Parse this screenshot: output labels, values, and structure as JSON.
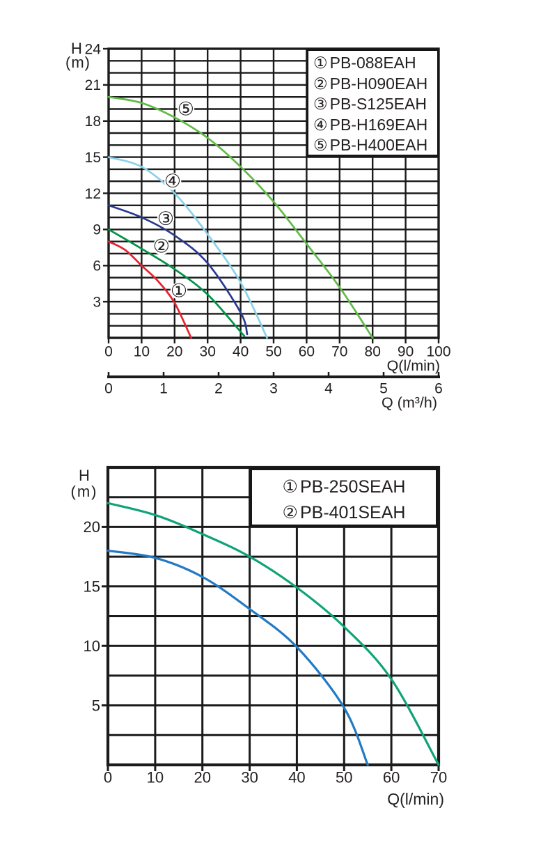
{
  "page": {
    "background": "#ffffff",
    "text_color": "#231f20",
    "grid_color": "#1b1b1b"
  },
  "chart_data": [
    {
      "type": "line",
      "title": "",
      "ylabel": "H (m)",
      "ylabel_line1": "H",
      "ylabel_line2": "(m)",
      "xlabel": "Q(l/min)",
      "x2label": "Q (m³/h)",
      "xlim": [
        0,
        100
      ],
      "ylim": [
        0,
        24
      ],
      "x2lim": [
        0,
        6
      ],
      "x_ticks": [
        0,
        10,
        20,
        30,
        40,
        50,
        60,
        70,
        80,
        90,
        100
      ],
      "y_ticks_labeled": [
        3,
        6,
        9,
        12,
        15,
        18,
        21,
        24
      ],
      "y_grid_step": 1,
      "x_grid_step": 10,
      "x2_ticks": [
        0,
        1,
        2,
        3,
        4,
        5,
        6
      ],
      "grid": true,
      "legend_position": "top-right",
      "legend_items": [
        {
          "marker": "①",
          "label": "PB-088EAH"
        },
        {
          "marker": "②",
          "label": "PB-H090EAH"
        },
        {
          "marker": "③",
          "label": "PB-S125EAH"
        },
        {
          "marker": "④",
          "label": "PB-H169EAH"
        },
        {
          "marker": "⑤",
          "label": "PB-H400EAH"
        }
      ],
      "series": [
        {
          "marker": "①",
          "name": "PB-088EAH",
          "color": "#e4232e",
          "points": [
            [
              0,
              8
            ],
            [
              5,
              7.3
            ],
            [
              10,
              6
            ],
            [
              15,
              4.7
            ],
            [
              20,
              2.9
            ],
            [
              25,
              0
            ]
          ]
        },
        {
          "marker": "②",
          "name": "PB-H090EAH",
          "color": "#009245",
          "points": [
            [
              0,
              9
            ],
            [
              10,
              7.4
            ],
            [
              20,
              5.7
            ],
            [
              30,
              3.6
            ],
            [
              40,
              0.5
            ],
            [
              41,
              0.2
            ]
          ]
        },
        {
          "marker": "③",
          "name": "PB-S125EAH",
          "color": "#2b3990",
          "points": [
            [
              0,
              11
            ],
            [
              10,
              10
            ],
            [
              20,
              8.5
            ],
            [
              30,
              6.2
            ],
            [
              40,
              2.1
            ],
            [
              42,
              0.3
            ]
          ]
        },
        {
          "marker": "④",
          "name": "PB-H169EAH",
          "color": "#8ad2e9",
          "points": [
            [
              0,
              15
            ],
            [
              10,
              14.2
            ],
            [
              20,
              12
            ],
            [
              30,
              8.6
            ],
            [
              40,
              4.6
            ],
            [
              48,
              0
            ]
          ]
        },
        {
          "marker": "⑤",
          "name": "PB-H400EAH",
          "color": "#5fbb46",
          "points": [
            [
              0,
              20
            ],
            [
              10,
              19.5
            ],
            [
              20,
              18.3
            ],
            [
              30,
              16.6
            ],
            [
              40,
              14.2
            ],
            [
              50,
              11.3
            ],
            [
              60,
              7.8
            ],
            [
              70,
              4.2
            ],
            [
              80,
              0
            ]
          ]
        }
      ],
      "curve_labels": [
        {
          "marker": "①",
          "x": 21.3,
          "y": 3.9
        },
        {
          "marker": "②",
          "x": 16.0,
          "y": 7.6
        },
        {
          "marker": "③",
          "x": 17.3,
          "y": 9.9
        },
        {
          "marker": "④",
          "x": 19.4,
          "y": 13.0
        },
        {
          "marker": "⑤",
          "x": 23.4,
          "y": 19.0
        }
      ]
    },
    {
      "type": "line",
      "title": "",
      "ylabel": "H (m)",
      "ylabel_line1": "H",
      "ylabel_line2": "(m)",
      "xlabel": "Q(l/min)",
      "xlim": [
        0,
        70
      ],
      "ylim": [
        0,
        25
      ],
      "x_ticks": [
        0,
        10,
        20,
        30,
        40,
        50,
        60,
        70
      ],
      "y_ticks_labeled": [
        5,
        10,
        15,
        20
      ],
      "y_grid_step": 2.5,
      "x_grid_step": 10,
      "grid": true,
      "legend_position": "top-right",
      "legend_items": [
        {
          "marker": "①",
          "label": "PB-250SEAH"
        },
        {
          "marker": "②",
          "label": "PB-401SEAH"
        }
      ],
      "series": [
        {
          "marker": "①",
          "name": "PB-250SEAH",
          "color": "#2279c4",
          "points": [
            [
              0,
              18
            ],
            [
              10,
              17.4
            ],
            [
              20,
              15.8
            ],
            [
              30,
              13.1
            ],
            [
              40,
              9.9
            ],
            [
              50,
              4.8
            ],
            [
              55,
              0
            ]
          ]
        },
        {
          "marker": "②",
          "name": "PB-401SEAH",
          "color": "#0fa377",
          "points": [
            [
              0,
              22
            ],
            [
              10,
              21
            ],
            [
              20,
              19.4
            ],
            [
              30,
              17.5
            ],
            [
              40,
              14.9
            ],
            [
              50,
              11.6
            ],
            [
              60,
              7.2
            ],
            [
              70,
              0
            ]
          ]
        }
      ],
      "curve_labels": []
    }
  ]
}
